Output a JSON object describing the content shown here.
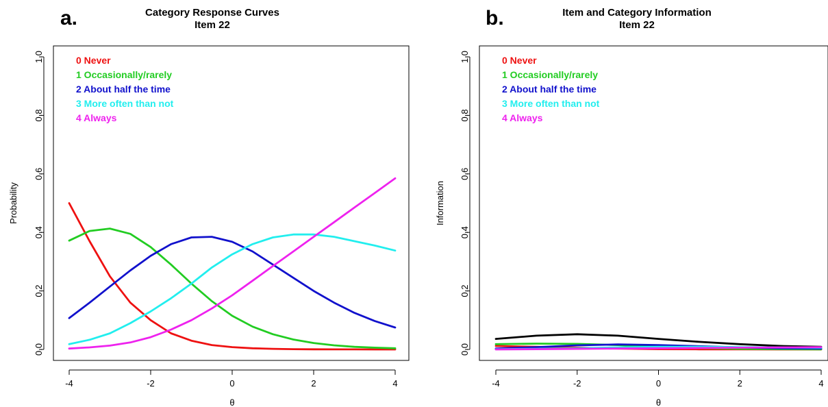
{
  "chart_data": [
    {
      "panel_label": "a.",
      "type": "line",
      "title": "Category Response Curves",
      "subtitle": "Item 22",
      "xlabel": "θ",
      "ylabel": "Probability",
      "xlim": [
        -4,
        4
      ],
      "ylim": [
        0,
        1
      ],
      "xticks": [
        "-4",
        "-2",
        "0",
        "2",
        "4"
      ],
      "yticks": [
        "0.0",
        "0.2",
        "0.4",
        "0.6",
        "0.8",
        "1.0"
      ],
      "legend_position": "top-left",
      "grid": false,
      "series": [
        {
          "name": "0 Never",
          "color": "#ee1111",
          "x": [
            -4,
            -3.5,
            -3,
            -2.5,
            -2,
            -1.5,
            -1,
            -0.5,
            0,
            0.5,
            1,
            1.5,
            2,
            2.5,
            3,
            3.5,
            4
          ],
          "y": [
            0.5,
            0.37,
            0.25,
            0.16,
            0.1,
            0.055,
            0.03,
            0.015,
            0.008,
            0.004,
            0.002,
            0.001,
            0.0005,
            0.0003,
            0.0002,
            0.0001,
            0.0001
          ]
        },
        {
          "name": "1 Occasionally/rarely",
          "color": "#22cc22",
          "x": [
            -4,
            -3.5,
            -3,
            -2.5,
            -2,
            -1.5,
            -1,
            -0.5,
            0,
            0.5,
            1,
            1.5,
            2,
            2.5,
            3,
            3.5,
            4
          ],
          "y": [
            0.372,
            0.405,
            0.413,
            0.395,
            0.35,
            0.29,
            0.225,
            0.165,
            0.115,
            0.078,
            0.052,
            0.034,
            0.022,
            0.014,
            0.009,
            0.006,
            0.004
          ]
        },
        {
          "name": "2 About half the time",
          "color": "#1111cc",
          "x": [
            -4,
            -3.5,
            -3,
            -2.5,
            -2,
            -1.5,
            -1,
            -0.5,
            0,
            0.5,
            1,
            1.5,
            2,
            2.5,
            3,
            3.5,
            4
          ],
          "y": [
            0.107,
            0.16,
            0.215,
            0.27,
            0.32,
            0.36,
            0.383,
            0.385,
            0.368,
            0.335,
            0.29,
            0.245,
            0.2,
            0.16,
            0.125,
            0.097,
            0.075
          ]
        },
        {
          "name": "3 More often than not",
          "color": "#22eeee",
          "x": [
            -4,
            -3.5,
            -3,
            -2.5,
            -2,
            -1.5,
            -1,
            -0.5,
            0,
            0.5,
            1,
            1.5,
            2,
            2.5,
            3,
            3.5,
            4
          ],
          "y": [
            0.018,
            0.033,
            0.055,
            0.09,
            0.13,
            0.175,
            0.225,
            0.28,
            0.325,
            0.36,
            0.383,
            0.393,
            0.393,
            0.385,
            0.37,
            0.355,
            0.338
          ]
        },
        {
          "name": "4 Always",
          "color": "#ee22ee",
          "x": [
            -4,
            -3.5,
            -3,
            -2.5,
            -2,
            -1.5,
            -1,
            -0.5,
            0,
            0.5,
            1,
            1.5,
            2,
            2.5,
            3,
            3.5,
            4
          ],
          "y": [
            0.003,
            0.007,
            0.013,
            0.024,
            0.042,
            0.068,
            0.1,
            0.14,
            0.185,
            0.235,
            0.285,
            0.335,
            0.385,
            0.435,
            0.485,
            0.535,
            0.585
          ]
        }
      ]
    },
    {
      "panel_label": "b.",
      "type": "line",
      "title": "Item and Category Information",
      "subtitle": "Item 22",
      "xlabel": "θ",
      "ylabel": "Information",
      "xlim": [
        -4,
        4
      ],
      "ylim": [
        0,
        1
      ],
      "xticks": [
        "-4",
        "-2",
        "0",
        "2",
        "4"
      ],
      "yticks": [
        "0.0",
        "0.2",
        "0.4",
        "0.6",
        "0.8",
        "1.0"
      ],
      "legend_position": "top-left",
      "grid": false,
      "series": [
        {
          "color": "#000000",
          "x": [
            -4,
            -3,
            -2,
            -1,
            0,
            1,
            2,
            3,
            4
          ],
          "y": [
            0.036,
            0.047,
            0.052,
            0.047,
            0.036,
            0.026,
            0.018,
            0.012,
            0.009
          ]
        },
        {
          "name": "0 Never",
          "color": "#ee1111",
          "x": [
            -4,
            -3,
            -2,
            -1,
            0,
            1,
            2,
            3,
            4
          ],
          "y": [
            0.012,
            0.009,
            0.006,
            0.003,
            0.001,
            0.0005,
            0.0002,
            0.0001,
            0.0001
          ]
        },
        {
          "name": "1 Occasionally/rarely",
          "color": "#22cc22",
          "x": [
            -4,
            -3,
            -2,
            -1,
            0,
            1,
            2,
            3,
            4
          ],
          "y": [
            0.018,
            0.02,
            0.019,
            0.015,
            0.009,
            0.005,
            0.002,
            0.001,
            0.0005
          ]
        },
        {
          "name": "2 About half the time",
          "color": "#1111cc",
          "x": [
            -4,
            -3,
            -2,
            -1,
            0,
            1,
            2,
            3,
            4
          ],
          "y": [
            0.003,
            0.008,
            0.014,
            0.017,
            0.015,
            0.011,
            0.007,
            0.004,
            0.003
          ]
        },
        {
          "name": "3 More often than not",
          "color": "#22eeee",
          "x": [
            -4,
            -3,
            -2,
            -1,
            0,
            1,
            2,
            3,
            4
          ],
          "y": [
            0.001,
            0.002,
            0.004,
            0.007,
            0.009,
            0.009,
            0.008,
            0.007,
            0.006
          ]
        },
        {
          "name": "4 Always",
          "color": "#ee22ee",
          "x": [
            -4,
            -3,
            -2,
            -1,
            0,
            1,
            2,
            3,
            4
          ],
          "y": [
            0.0,
            0.001,
            0.002,
            0.003,
            0.004,
            0.005,
            0.006,
            0.007,
            0.008
          ]
        }
      ]
    }
  ]
}
